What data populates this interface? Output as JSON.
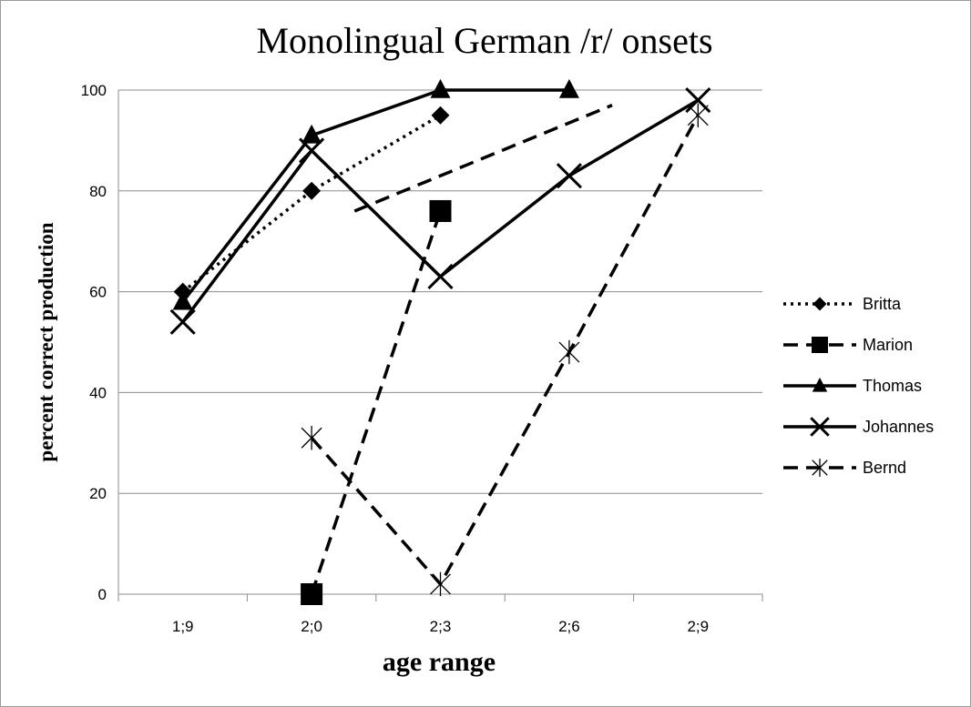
{
  "chart_data": {
    "type": "line",
    "title": "Monolingual German /r/ onsets",
    "xlabel": "age range",
    "ylabel": "percent correct production",
    "categories": [
      "1;9",
      "2;0",
      "2;3",
      "2;6",
      "2;9"
    ],
    "y_ticks": [
      "0",
      "20",
      "40",
      "60",
      "80",
      "100"
    ],
    "ylim": [
      0,
      100
    ],
    "grid": true,
    "legend_position": "right",
    "series": [
      {
        "name": "Britta",
        "marker": "diamond",
        "dash": "dotted",
        "values": [
          60,
          80,
          95,
          null,
          null
        ]
      },
      {
        "name": "Marion",
        "marker": "square",
        "dash": "dashed",
        "values": [
          null,
          0,
          76,
          null,
          null
        ]
      },
      {
        "name": "Thomas",
        "marker": "triangle",
        "dash": "solid",
        "values": [
          58,
          91,
          100,
          100,
          null
        ]
      },
      {
        "name": "Johannes",
        "marker": "x",
        "dash": "solid",
        "values": [
          54,
          88,
          63,
          83,
          98
        ]
      },
      {
        "name": "Bernd",
        "marker": "star",
        "dash": "dashed",
        "values": [
          null,
          31,
          2,
          48,
          95
        ]
      }
    ],
    "extra_segments": [
      {
        "series": "Marion",
        "from": [
          2.3,
          76
        ],
        "to": [
          2.9,
          97
        ]
      }
    ]
  }
}
